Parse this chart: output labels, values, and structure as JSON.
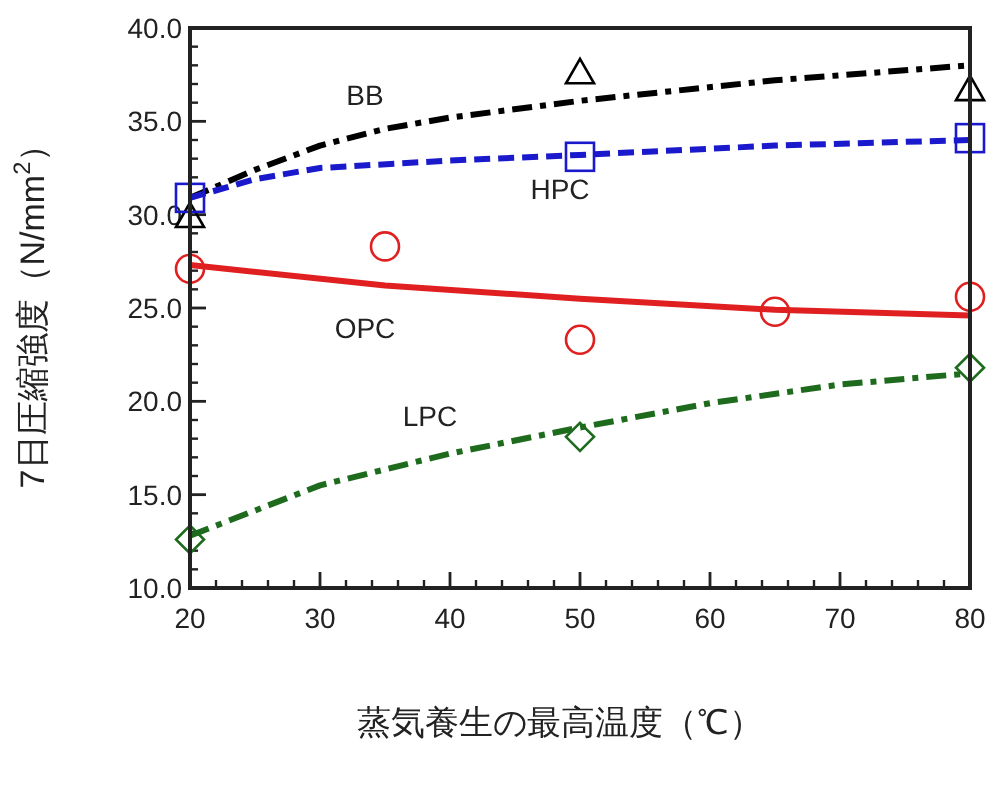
{
  "chart_data": {
    "type": "line",
    "xlabel": "蒸気養生の最高温度（℃）",
    "ylabel": "7日圧縮強度（N/mm$^{2}$）",
    "xlim": [
      20,
      80
    ],
    "ylim": [
      10,
      40
    ],
    "xticks": [
      20,
      30,
      40,
      50,
      60,
      70,
      80
    ],
    "yticks": [
      {
        "value": 10,
        "label": "10.0"
      },
      {
        "value": 15,
        "label": "15.0"
      },
      {
        "value": 20,
        "label": "20.0"
      },
      {
        "value": 25,
        "label": "25.0"
      },
      {
        "value": 30,
        "label": "30.0"
      },
      {
        "value": 35,
        "label": "35.0"
      },
      {
        "value": 40,
        "label": "40.0"
      }
    ],
    "grid": false,
    "series": [
      {
        "name": "BB",
        "color": "#000000",
        "line_style": "dashdot",
        "x": [
          20,
          25,
          30,
          35,
          40,
          50,
          65,
          80
        ],
        "values": [
          30.9,
          32.4,
          33.7,
          34.6,
          35.2,
          36.1,
          37.2,
          38.0
        ]
      },
      {
        "name": "HPC",
        "color": "#1a1acc",
        "line_style": "dashed",
        "x": [
          20,
          25,
          30,
          40,
          50,
          65,
          80
        ],
        "values": [
          30.9,
          31.9,
          32.5,
          32.9,
          33.2,
          33.7,
          34.0
        ]
      },
      {
        "name": "OPC",
        "color": "#e02020",
        "line_style": "solid",
        "x": [
          20,
          35,
          50,
          65,
          80
        ],
        "values": [
          27.3,
          26.2,
          25.5,
          24.9,
          24.6
        ]
      },
      {
        "name": "LPC",
        "color": "#1e6b1e",
        "line_style": "dashdot",
        "x": [
          20,
          30,
          40,
          50,
          60,
          70,
          80
        ],
        "values": [
          12.8,
          15.5,
          17.2,
          18.6,
          19.9,
          20.9,
          21.5
        ]
      },
      {
        "type": "scatter",
        "color": "#000000",
        "marker": "triangle",
        "x": [
          20,
          50,
          80
        ],
        "values": [
          29.9,
          37.6,
          36.7
        ]
      },
      {
        "type": "scatter",
        "color": "#1a1acc",
        "marker": "square",
        "x": [
          20,
          50,
          80
        ],
        "values": [
          30.9,
          33.1,
          34.1
        ]
      },
      {
        "type": "scatter",
        "color": "#e02020",
        "marker": "circle",
        "x": [
          20,
          35,
          50,
          65,
          80
        ],
        "values": [
          27.1,
          28.3,
          23.3,
          24.8,
          25.6
        ]
      },
      {
        "type": "scatter",
        "color": "#1e6b1e",
        "marker": "diamond",
        "x": [
          20,
          50,
          80
        ],
        "values": [
          12.6,
          18.1,
          21.8
        ]
      }
    ]
  }
}
